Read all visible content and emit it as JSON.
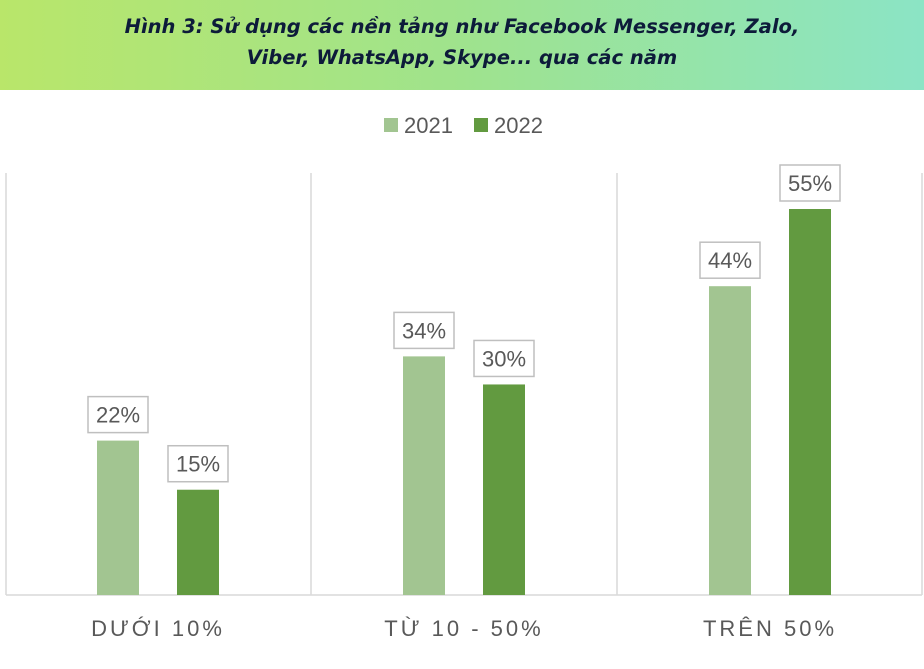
{
  "chart_data": {
    "type": "bar",
    "title": "Hình 3: Sử dụng các nền tảng như Facebook Messenger, Zalo, Viber, WhatsApp, Skype... qua các năm",
    "title_lines": [
      "Hình 3: Sử dụng các nền tảng như Facebook Messenger, Zalo,",
      "Viber, WhatsApp, Skype... qua các năm"
    ],
    "categories": [
      "DƯỚI 10%",
      "TỪ 10 - 50%",
      "TRÊN 50%"
    ],
    "series": [
      {
        "name": "2021",
        "values": [
          22,
          34,
          44
        ],
        "labels": [
          "22%",
          "34%",
          "44%"
        ],
        "color": "#a2c591"
      },
      {
        "name": "2022",
        "values": [
          15,
          30,
          55
        ],
        "labels": [
          "15%",
          "30%",
          "55%"
        ],
        "color": "#629a40"
      }
    ],
    "ylim": [
      0,
      57
    ],
    "grid": false,
    "legend_position": "top-center"
  }
}
